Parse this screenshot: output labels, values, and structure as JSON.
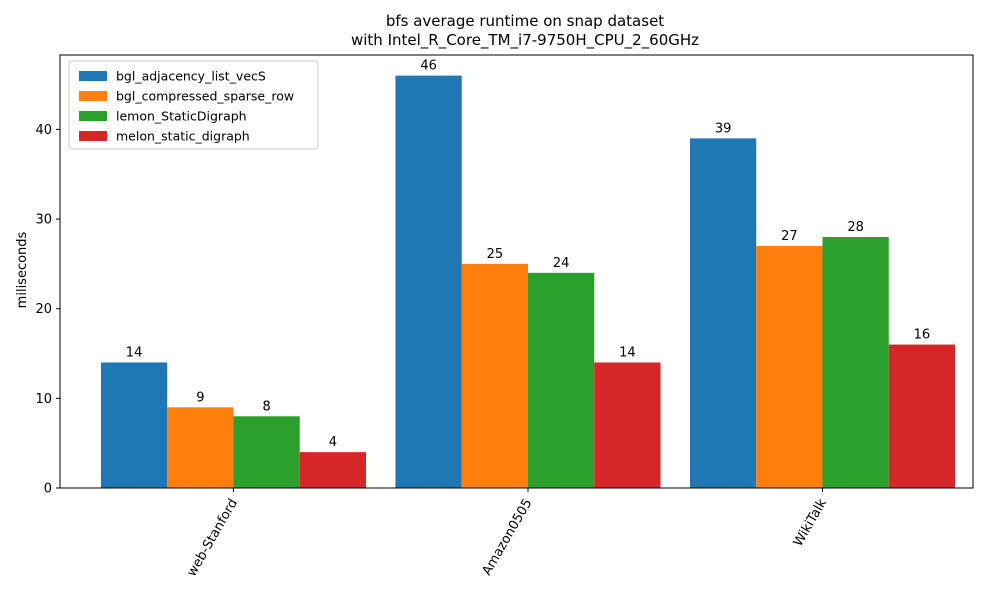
{
  "chart_data": {
    "type": "bar",
    "title": "bfs average runtime on snap dataset",
    "subtitle": "with Intel_R_Core_TM_i7-9750H_CPU_2_60GHz",
    "xlabel": "",
    "ylabel": "miliseconds",
    "categories": [
      "web-Stanford",
      "Amazon0505",
      "WikiTalk"
    ],
    "series": [
      {
        "name": "bgl_adjacency_list_vecS",
        "color": "#1f77b4",
        "values": [
          14,
          46,
          39
        ]
      },
      {
        "name": "bgl_compressed_sparse_row",
        "color": "#ff7f0e",
        "values": [
          9,
          25,
          27
        ]
      },
      {
        "name": "lemon_StaticDigraph",
        "color": "#2ca02c",
        "values": [
          8,
          24,
          28
        ]
      },
      {
        "name": "melon_static_digraph",
        "color": "#d62728",
        "values": [
          4,
          14,
          16
        ]
      }
    ],
    "ylim": [
      0,
      48.3
    ],
    "yticks": [
      0,
      10,
      20,
      30,
      40
    ],
    "legend_position": "top-left",
    "grid": false,
    "x_tick_rotation": 60
  }
}
